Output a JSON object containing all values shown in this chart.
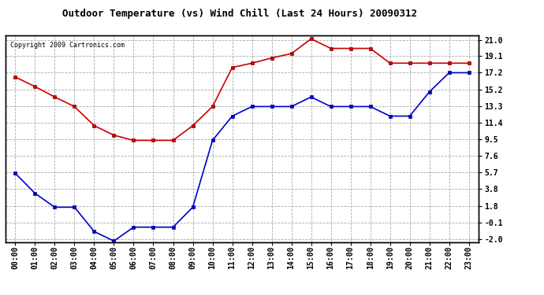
{
  "title": "Outdoor Temperature (vs) Wind Chill (Last 24 Hours) 20090312",
  "copyright": "Copyright 2009 Cartronics.com",
  "x_labels": [
    "00:00",
    "01:00",
    "02:00",
    "03:00",
    "04:00",
    "05:00",
    "06:00",
    "07:00",
    "08:00",
    "09:00",
    "10:00",
    "11:00",
    "12:00",
    "13:00",
    "14:00",
    "15:00",
    "16:00",
    "17:00",
    "18:00",
    "19:00",
    "20:00",
    "21:00",
    "22:00",
    "23:00"
  ],
  "red_data": [
    16.7,
    15.6,
    14.4,
    13.3,
    11.1,
    10.0,
    9.4,
    9.4,
    9.4,
    11.1,
    13.3,
    17.8,
    18.3,
    18.9,
    19.4,
    21.1,
    20.0,
    20.0,
    20.0,
    18.3,
    18.3,
    18.3,
    18.3,
    18.3
  ],
  "blue_data": [
    5.6,
    3.3,
    1.7,
    1.7,
    -1.1,
    -2.2,
    -0.6,
    -0.6,
    -0.6,
    1.7,
    9.4,
    12.2,
    13.3,
    13.3,
    13.3,
    14.4,
    13.3,
    13.3,
    13.3,
    12.2,
    12.2,
    15.0,
    17.2,
    17.2
  ],
  "y_ticks": [
    21.0,
    19.1,
    17.2,
    15.2,
    13.3,
    11.4,
    9.5,
    7.6,
    5.7,
    3.8,
    1.8,
    -0.1,
    -2.0
  ],
  "y_min": -2.0,
  "y_max": 21.0,
  "red_color": "#cc0000",
  "blue_color": "#0000cc",
  "bg_color": "#ffffff",
  "grid_color": "#aaaaaa",
  "title_fontsize": 9,
  "copyright_fontsize": 6,
  "tick_fontsize": 7,
  "ytick_fontsize": 7
}
